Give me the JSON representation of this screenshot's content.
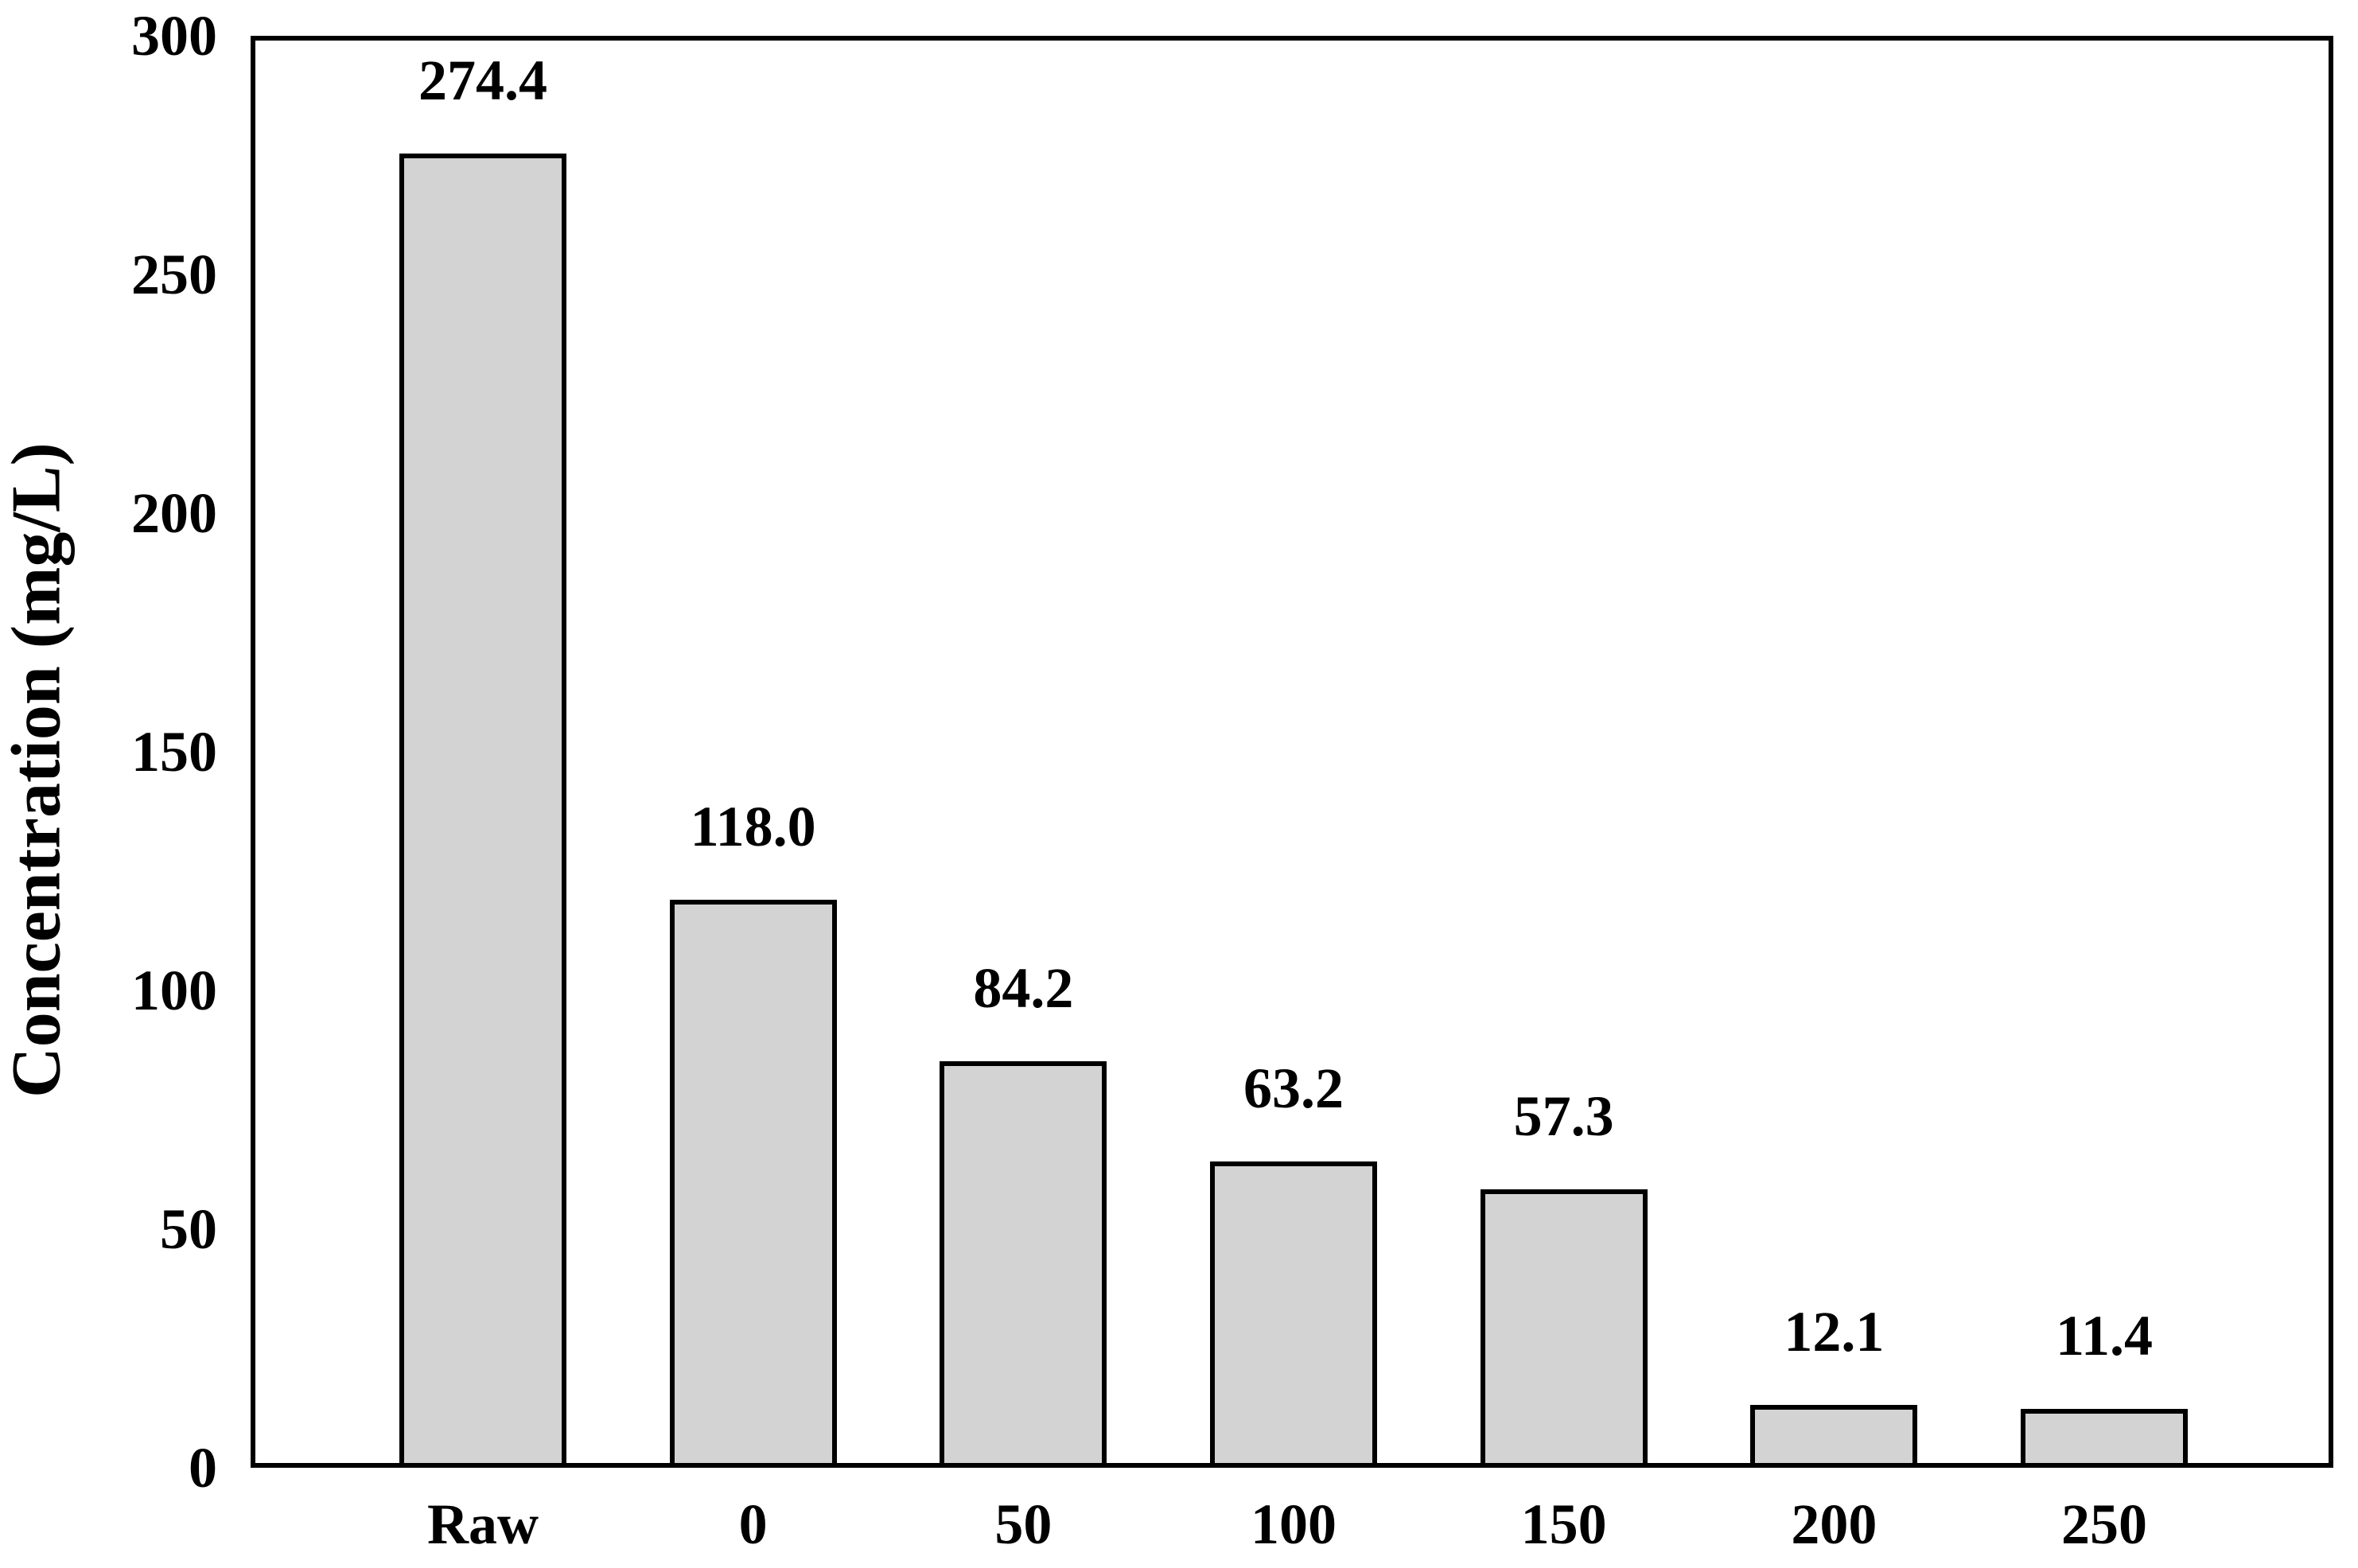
{
  "chart_data": {
    "type": "bar",
    "title": "",
    "xlabel": "",
    "ylabel": "Concentration (mg/L)",
    "categories": [
      "Raw",
      "0",
      "50",
      "100",
      "150",
      "200",
      "250"
    ],
    "values": [
      274.4,
      118.0,
      84.2,
      63.2,
      57.3,
      12.1,
      11.4
    ],
    "value_labels": [
      "274.4",
      "118.0",
      "84.2",
      "63.2",
      "57.3",
      "12.1",
      "11.4"
    ],
    "yticks": [
      0,
      50,
      100,
      150,
      200,
      250,
      300
    ],
    "ylim": [
      0,
      300
    ],
    "grid": "off",
    "legend": "none",
    "bar_fill_color": "#d3d3d3",
    "bar_border_color": "#000000",
    "axis_color": "#000000"
  }
}
